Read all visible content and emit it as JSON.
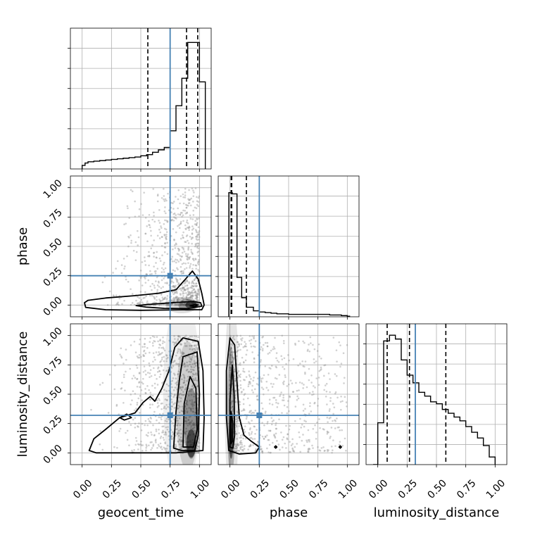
{
  "chart_data": {
    "type": "corner",
    "parameters": [
      "geocent_time",
      "phase",
      "luminosity_distance"
    ],
    "ticks": [
      "0.00",
      "0.25",
      "0.50",
      "0.75",
      "1.00"
    ],
    "tick_values": [
      0,
      0.25,
      0.5,
      0.75,
      1.0
    ],
    "axis_range": [
      -0.1,
      1.1
    ],
    "colors": {
      "truth": "#4682b4",
      "line": "#000000",
      "grid": "#b0b0b0",
      "scatter": "#9a9a9a"
    },
    "grid": true,
    "truths": {
      "geocent_time": 0.75,
      "phase": 0.25,
      "luminosity_distance": 0.32
    },
    "quantiles": {
      "geocent_time": [
        0.56,
        0.89,
        0.985
      ],
      "phase": [
        0.01,
        0.015,
        0.14
      ],
      "luminosity_distance": [
        0.08,
        0.27,
        0.58
      ]
    },
    "histograms": {
      "geocent_time": {
        "edges": [
          0.0,
          0.025,
          0.05,
          0.1,
          0.15,
          0.2,
          0.25,
          0.3,
          0.35,
          0.4,
          0.45,
          0.5,
          0.55,
          0.6,
          0.65,
          0.7,
          0.75,
          0.8,
          0.85,
          0.9,
          0.95,
          1.0,
          1.05
        ],
        "counts": [
          3,
          5,
          6,
          6.5,
          7,
          7.5,
          8,
          8.5,
          9,
          9.5,
          10,
          11,
          12,
          14,
          16,
          18,
          32,
          53,
          76,
          106,
          106,
          73
        ],
        "ymax": 118
      },
      "phase": {
        "edges": [
          -0.01,
          0.02,
          0.06,
          0.1,
          0.14,
          0.2,
          0.25,
          0.3,
          0.35,
          0.4,
          0.45,
          0.5,
          0.55,
          0.6,
          0.65,
          0.7,
          0.75,
          0.8,
          0.85,
          0.9,
          0.95,
          1.0,
          1.02
        ],
        "counts": [
          104,
          103,
          33,
          16,
          8,
          5,
          4,
          3.5,
          3,
          2.5,
          2.5,
          2,
          2,
          2,
          2,
          2,
          2,
          2,
          1.5,
          1.5,
          1,
          0.5
        ],
        "ymax": 118
      },
      "luminosity_distance": {
        "edges": [
          -0.04,
          0.0,
          0.05,
          0.1,
          0.15,
          0.2,
          0.25,
          0.3,
          0.35,
          0.4,
          0.45,
          0.5,
          0.55,
          0.6,
          0.65,
          0.7,
          0.75,
          0.8,
          0.85,
          0.9,
          0.95,
          1.0
        ],
        "counts": [
          0,
          22,
          65,
          68,
          66,
          55,
          47,
          43,
          38,
          36,
          33,
          32,
          29,
          27,
          25,
          23,
          20,
          17,
          14,
          10,
          4
        ],
        "ymax": 74
      }
    },
    "contours": {
      "phase_vs_geocent_time": [
        [
          [
            0.02,
            0.02
          ],
          [
            0.05,
            0.04
          ],
          [
            0.2,
            0.06
          ],
          [
            0.45,
            0.08
          ],
          [
            0.65,
            0.1
          ],
          [
            0.8,
            0.13
          ],
          [
            0.88,
            0.22
          ],
          [
            0.94,
            0.29
          ],
          [
            0.99,
            0.22
          ],
          [
            1.02,
            0.1
          ],
          [
            1.04,
            0.0
          ],
          [
            1.02,
            -0.04
          ],
          [
            0.9,
            -0.04
          ],
          [
            0.5,
            -0.045
          ],
          [
            0.2,
            -0.04
          ],
          [
            0.03,
            -0.02
          ]
        ],
        [
          [
            0.46,
            -0.005
          ],
          [
            0.6,
            0.008
          ],
          [
            0.8,
            0.022
          ],
          [
            0.95,
            0.03
          ],
          [
            1.01,
            0.02
          ],
          [
            1.02,
            -0.01
          ],
          [
            0.9,
            -0.03
          ],
          [
            0.7,
            -0.028
          ],
          [
            0.55,
            -0.018
          ]
        ],
        [
          [
            0.92,
            -0.008
          ],
          [
            0.96,
            0.004
          ],
          [
            0.99,
            0.0
          ],
          [
            0.96,
            -0.012
          ]
        ]
      ],
      "luminosity_distance_vs_geocent_time": [
        [
          [
            0.06,
            0.02
          ],
          [
            0.1,
            0.12
          ],
          [
            0.2,
            0.2
          ],
          [
            0.32,
            0.3
          ],
          [
            0.45,
            0.34
          ],
          [
            0.52,
            0.43
          ],
          [
            0.58,
            0.48
          ],
          [
            0.62,
            0.44
          ],
          [
            0.68,
            0.55
          ],
          [
            0.74,
            0.7
          ],
          [
            0.79,
            0.9
          ],
          [
            0.86,
            0.98
          ],
          [
            0.99,
            0.95
          ],
          [
            1.03,
            0.7
          ],
          [
            1.04,
            0.3
          ],
          [
            1.03,
            0.02
          ],
          [
            0.8,
            0.0
          ],
          [
            0.4,
            0.0
          ],
          [
            0.12,
            0.0
          ]
        ],
        [
          [
            0.78,
            0.04
          ],
          [
            0.8,
            0.35
          ],
          [
            0.83,
            0.63
          ],
          [
            0.86,
            0.82
          ],
          [
            0.98,
            0.86
          ],
          [
            1.0,
            0.5
          ],
          [
            0.99,
            0.15
          ],
          [
            0.96,
            0.02
          ],
          [
            0.85,
            0.02
          ]
        ],
        [
          [
            0.86,
            0.05
          ],
          [
            0.87,
            0.42
          ],
          [
            0.92,
            0.65
          ],
          [
            0.97,
            0.55
          ],
          [
            0.98,
            0.2
          ],
          [
            0.95,
            0.05
          ]
        ],
        [
          [
            0.32,
            0.3
          ],
          [
            0.38,
            0.33
          ],
          [
            0.42,
            0.3
          ],
          [
            0.36,
            0.28
          ]
        ]
      ],
      "luminosity_distance_vs_phase": [
        [
          [
            -0.01,
            0.02
          ],
          [
            -0.03,
            0.3
          ],
          [
            -0.03,
            0.7
          ],
          [
            0.0,
            0.98
          ],
          [
            0.04,
            0.92
          ],
          [
            0.06,
            0.6
          ],
          [
            0.08,
            0.3
          ],
          [
            0.12,
            0.15
          ],
          [
            0.18,
            0.1
          ],
          [
            0.25,
            0.05
          ],
          [
            0.22,
            0.0
          ],
          [
            0.08,
            -0.01
          ]
        ],
        [
          [
            0.0,
            0.05
          ],
          [
            0.0,
            0.45
          ],
          [
            0.02,
            0.75
          ],
          [
            0.035,
            0.5
          ],
          [
            0.04,
            0.15
          ],
          [
            0.025,
            0.04
          ]
        ],
        [
          [
            0.01,
            0.08
          ],
          [
            0.01,
            0.35
          ],
          [
            0.025,
            0.25
          ],
          [
            0.022,
            0.1
          ]
        ],
        [
          [
            0.38,
            0.05
          ],
          [
            0.39,
            0.06
          ],
          [
            0.4,
            0.05
          ],
          [
            0.39,
            0.04
          ]
        ],
        [
          [
            0.93,
            0.05
          ],
          [
            0.94,
            0.06
          ],
          [
            0.95,
            0.05
          ],
          [
            0.94,
            0.04
          ]
        ]
      ]
    },
    "density_cores": {
      "phase_vs_geocent_time": [
        [
          0.93,
          0.0,
          0.05,
          0.03,
          0.95
        ],
        [
          0.9,
          0.0,
          0.08,
          0.05,
          0.5
        ],
        [
          0.85,
          0.0,
          0.14,
          0.07,
          0.25
        ]
      ],
      "luminosity_distance_vs_geocent_time": [
        [
          0.93,
          0.08,
          0.04,
          0.12,
          0.95
        ],
        [
          0.93,
          0.25,
          0.06,
          0.3,
          0.55
        ],
        [
          0.9,
          0.4,
          0.1,
          0.55,
          0.25
        ],
        [
          0.85,
          0.5,
          0.16,
          0.85,
          0.12
        ]
      ],
      "luminosity_distance_vs_phase": [
        [
          0.01,
          0.15,
          0.02,
          0.2,
          0.9
        ],
        [
          0.01,
          0.35,
          0.035,
          0.55,
          0.45
        ],
        [
          0.015,
          0.45,
          0.06,
          0.9,
          0.18
        ]
      ]
    }
  }
}
